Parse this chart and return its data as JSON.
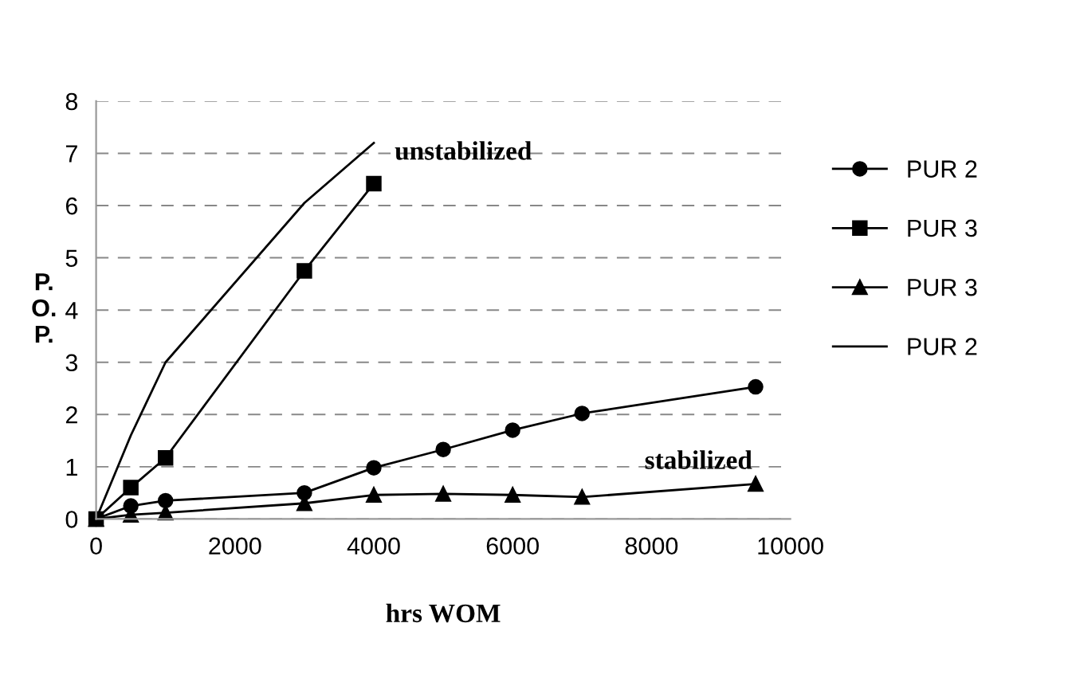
{
  "chart_data": {
    "type": "line",
    "xlabel": "hrs WOM",
    "ylabel": "P.\nO.\nP.",
    "xlim": [
      0,
      10000
    ],
    "xticks": [
      0,
      2000,
      4000,
      6000,
      8000,
      10000
    ],
    "ylim": [
      0,
      8
    ],
    "yticks": [
      0,
      1,
      2,
      3,
      4,
      5,
      6,
      7,
      8
    ],
    "grid": "y",
    "legend": "right",
    "series": [
      {
        "name": "PUR 2",
        "color": "#000000",
        "marker": "circle",
        "x": [
          0,
          500,
          1000,
          3000,
          4000,
          5000,
          6000,
          7000,
          9500
        ],
        "values": [
          0,
          0.25,
          0.35,
          0.5,
          0.98,
          1.33,
          1.7,
          2.02,
          2.53
        ]
      },
      {
        "name": "PUR 3",
        "color": "#000000",
        "marker": "square",
        "x": [
          0,
          500,
          1000,
          3000,
          4000
        ],
        "values": [
          0,
          0.6,
          1.17,
          4.75,
          6.42
        ]
      },
      {
        "name": "PUR 3",
        "color": "#000000",
        "marker": "triangle",
        "x": [
          0,
          500,
          1000,
          3000,
          4000,
          5000,
          6000,
          7000,
          9500
        ],
        "values": [
          0,
          0.08,
          0.12,
          0.3,
          0.46,
          0.48,
          0.46,
          0.42,
          0.67
        ]
      },
      {
        "name": "PUR 2",
        "color": "#000000",
        "marker": "none",
        "x": [
          0,
          500,
          1000,
          3000,
          4000
        ],
        "values": [
          0,
          1.6,
          3.0,
          6.05,
          7.2
        ]
      }
    ],
    "annotations": [
      "unstabilized",
      "stabilized"
    ]
  }
}
